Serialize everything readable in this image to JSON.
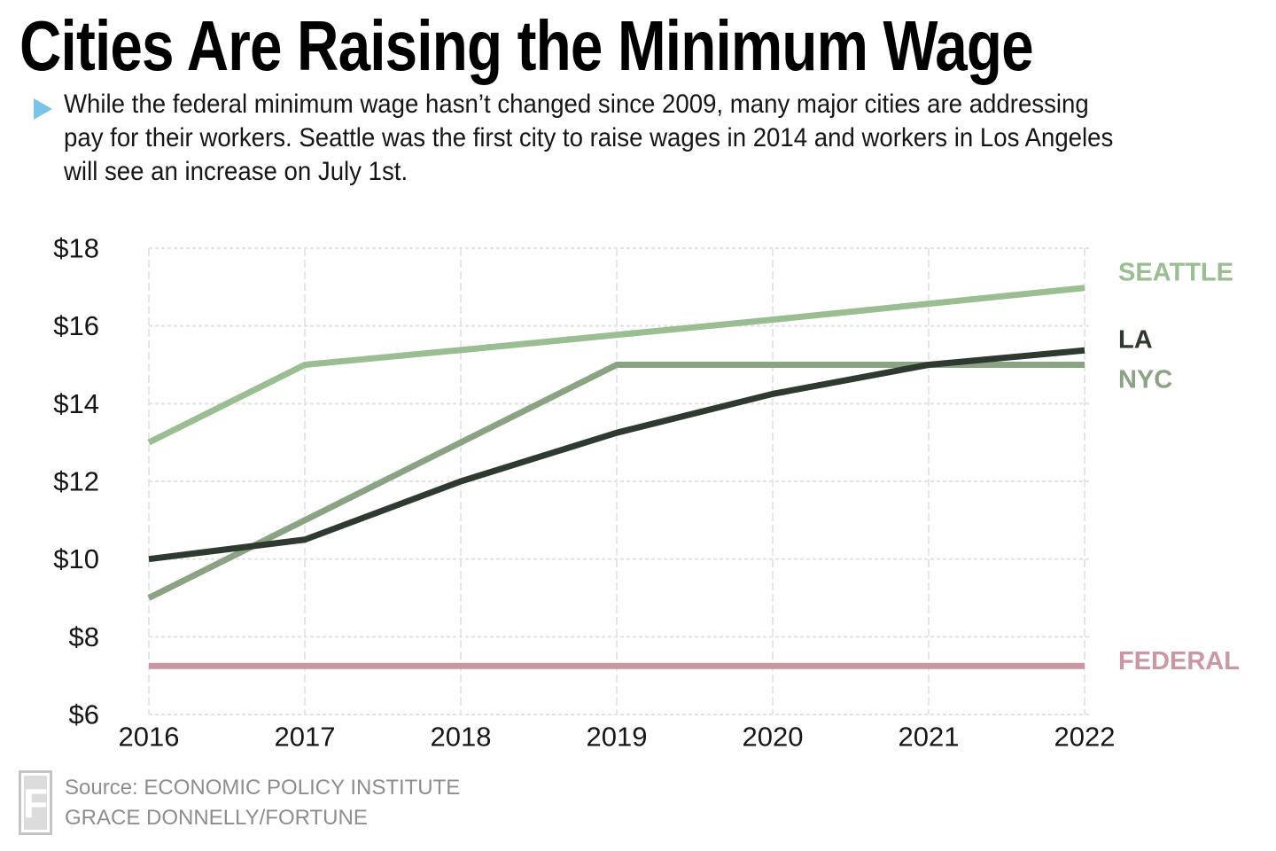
{
  "header": {
    "title": "Cities Are Raising the Minimum Wage",
    "bullet_icon": "play-triangle-icon",
    "bullet_color": "#7AC4E8",
    "subtitle_lines": [
      "While the federal minimum wage hasn’t changed since 2009, many major cities are addressing",
      "pay for their workers. Seattle was the first city to raise wages in 2014 and workers in Los Angeles",
      "will see an increase on July 1st."
    ]
  },
  "chart_data": {
    "type": "line",
    "title": "",
    "xlabel": "",
    "ylabel": "",
    "x": [
      2016,
      2017,
      2018,
      2019,
      2020,
      2021,
      2022
    ],
    "xtick_labels": [
      "2016",
      "2017",
      "2018",
      "2019",
      "2020",
      "2021",
      "2022"
    ],
    "ylim": [
      6,
      18
    ],
    "ytick_step": 2,
    "ytick_labels": [
      "$6",
      "$8",
      "$10",
      "$12",
      "$14",
      "$16",
      "$18"
    ],
    "grid": true,
    "gridline_color": "#E2E2E2",
    "legend_position": "right-of-line-ends",
    "series": [
      {
        "name": "SEATTLE",
        "color": "#9ABE92",
        "label_dy": -17,
        "values": [
          13.0,
          15.0,
          15.38,
          15.77,
          16.16,
          16.57,
          16.98
        ]
      },
      {
        "name": "LA",
        "color": "#2E3A2F",
        "label_dy": -12,
        "values": [
          10.0,
          10.5,
          12.0,
          13.25,
          14.25,
          15.0,
          15.37
        ]
      },
      {
        "name": "NYC",
        "color": "#8AA483",
        "label_dy": 17,
        "values": [
          9.0,
          11.0,
          13.0,
          15.0,
          15.0,
          15.0,
          15.0
        ]
      },
      {
        "name": "FEDERAL",
        "color": "#CB97A3",
        "label_dy": -5,
        "values": [
          7.25,
          7.25,
          7.25,
          7.25,
          7.25,
          7.25,
          7.25
        ]
      }
    ],
    "draw_order": [
      3,
      0,
      2,
      1
    ]
  },
  "footer": {
    "logo_letter": "F",
    "source_line": "Source: ECONOMIC POLICY INSTITUTE",
    "credit_line": "GRACE DONNELLY/FORTUNE"
  }
}
